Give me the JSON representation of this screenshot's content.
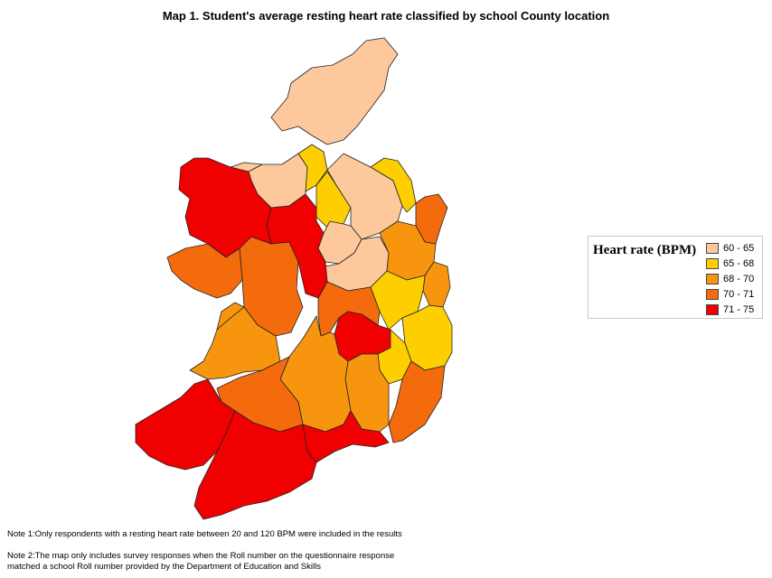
{
  "title": "Map 1. Student's average resting heart rate classified by school County location",
  "legend": {
    "title": "Heart rate (BPM)",
    "items": [
      {
        "label": "60 - 65",
        "color": "#fcc89c"
      },
      {
        "label": "65 - 68",
        "color": "#fdcf00"
      },
      {
        "label": "68 - 70",
        "color": "#f7960e"
      },
      {
        "label": "70 - 71",
        "color": "#f46b0d"
      },
      {
        "label": "71 - 75",
        "color": "#f00000"
      }
    ]
  },
  "notes": {
    "note1": "Note 1:Only respondents with a resting heart rate between 20 and 120 BPM were included in the results",
    "note2": "Note 2:The map only includes survey responses when the Roll number on the questionnaire response matched a school  Roll number provided by the Department of Education and Skills"
  }
}
